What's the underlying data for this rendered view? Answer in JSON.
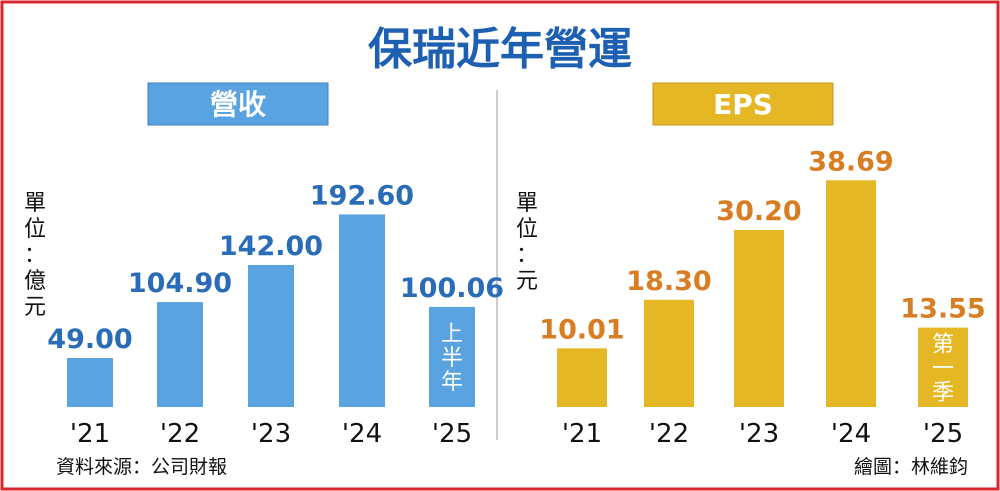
{
  "title": "保瑞近年營運",
  "colors": {
    "frame_red": "#d9272e",
    "title_blue": "#1d5fb0",
    "revenue_bar": "#5aa3e1",
    "revenue_label": "#2a6cb8",
    "eps_bar": "#e6b725",
    "eps_label": "#d97d22",
    "divider": "#bbbbbb"
  },
  "source": "資料來源：公司財報",
  "credit": "繪圖：林維鈞",
  "chart_data": [
    {
      "type": "bar",
      "title": "營收",
      "ylabel": "單位：億元",
      "categories": [
        "'21",
        "'22",
        "'23",
        "'24",
        "'25"
      ],
      "values": [
        49.0,
        104.9,
        142.0,
        192.6,
        100.06
      ],
      "data_labels": [
        "49.00",
        "104.90",
        "142.00",
        "192.60",
        "100.06"
      ],
      "annotations": [
        {
          "category": "'25",
          "text": "上半年"
        }
      ],
      "ylim": [
        0,
        200
      ]
    },
    {
      "type": "bar",
      "title": "EPS",
      "ylabel": "單位：元",
      "categories": [
        "'21",
        "'22",
        "'23",
        "'24",
        "'25"
      ],
      "values": [
        10.01,
        18.3,
        30.2,
        38.69,
        13.55
      ],
      "data_labels": [
        "10.01",
        "18.30",
        "30.20",
        "38.69",
        "13.55"
      ],
      "annotations": [
        {
          "category": "'25",
          "text": "第一季"
        }
      ],
      "ylim": [
        0,
        40
      ]
    }
  ]
}
